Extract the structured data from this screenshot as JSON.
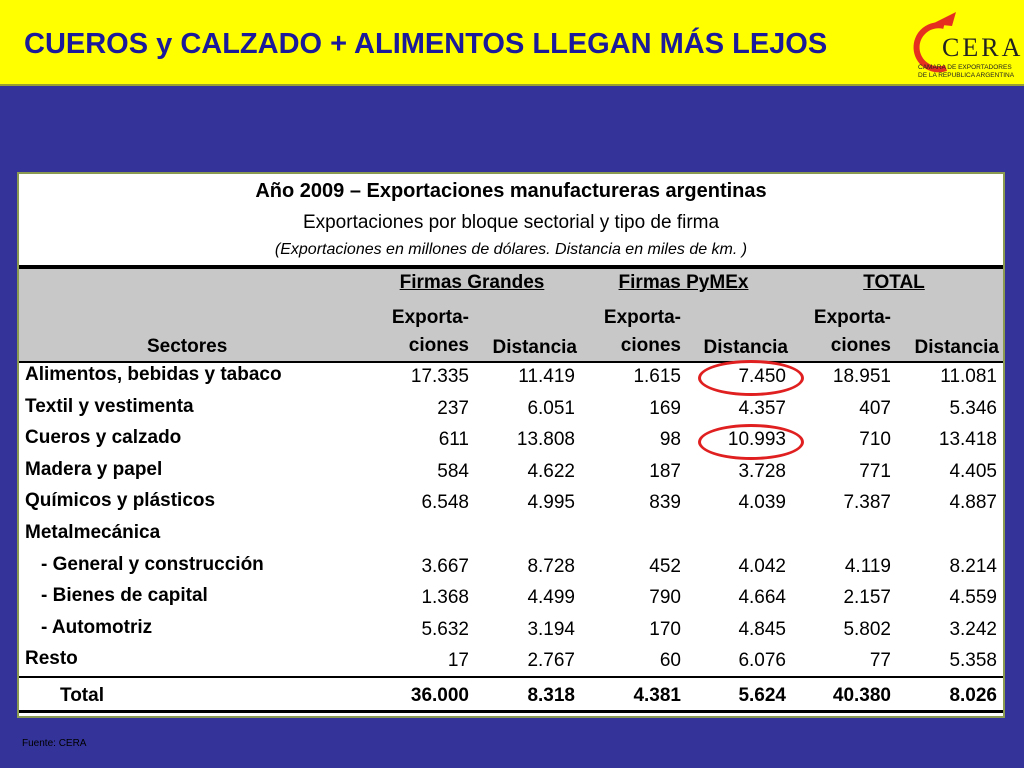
{
  "header": {
    "title": "CUEROS y CALZADO + ALIMENTOS LLEGAN MÁS LEJOS",
    "logo": {
      "name": "CERA",
      "line1": "CAMARA DE EXPORTADORES",
      "line2": "DE LA REPUBLICA ARGENTINA"
    }
  },
  "table": {
    "title": "Año 2009 – Exportaciones manufactureras argentinas",
    "subtitle": "Exportaciones por bloque sectorial y tipo de firma",
    "note": "(Exportaciones en  millones de dólares. Distancia en miles de km. )",
    "groups": [
      "Firmas Grandes",
      "Firmas PyMEx",
      "TOTAL"
    ],
    "row_header": "Sectores",
    "columns": [
      [
        "Exporta-",
        "ciones"
      ],
      "Distancia",
      [
        "Exporta-",
        "ciones"
      ],
      "Distancia",
      [
        "Exporta-",
        "ciones"
      ],
      "Distancia"
    ],
    "rows": [
      {
        "label": "Alimentos, bebidas y tabaco",
        "values": [
          "17.335",
          "11.419",
          "1.615",
          "7.450",
          "18.951",
          "11.081"
        ]
      },
      {
        "label": "Textil y vestimenta",
        "values": [
          "237",
          "6.051",
          "169",
          "4.357",
          "407",
          "5.346"
        ]
      },
      {
        "label": "Cueros y calzado",
        "values": [
          "611",
          "13.808",
          "98",
          "10.993",
          "710",
          "13.418"
        ]
      },
      {
        "label": "Madera y papel",
        "values": [
          "584",
          "4.622",
          "187",
          "3.728",
          "771",
          "4.405"
        ]
      },
      {
        "label": "Químicos y plásticos",
        "values": [
          "6.548",
          "4.995",
          "839",
          "4.039",
          "7.387",
          "4.887"
        ]
      },
      {
        "label": "Metalmecánica"
      },
      {
        "label": "- General y construcción",
        "values": [
          "3.667",
          "8.728",
          "452",
          "4.042",
          "4.119",
          "8.214"
        ]
      },
      {
        "label": "- Bienes de capital",
        "values": [
          "1.368",
          "4.499",
          "790",
          "4.664",
          "2.157",
          "4.559"
        ]
      },
      {
        "label": "- Automotriz",
        "values": [
          "5.632",
          "3.194",
          "170",
          "4.845",
          "5.802",
          "3.242"
        ]
      },
      {
        "label": "Resto",
        "values": [
          "17",
          "2.767",
          "60",
          "6.076",
          "77",
          "5.358"
        ]
      }
    ],
    "total": {
      "label": "Total",
      "values": [
        "36.000",
        "8.318",
        "4.381",
        "5.624",
        "40.380",
        "8.026"
      ]
    }
  },
  "footer": {
    "source": "Fuente: CERA"
  }
}
